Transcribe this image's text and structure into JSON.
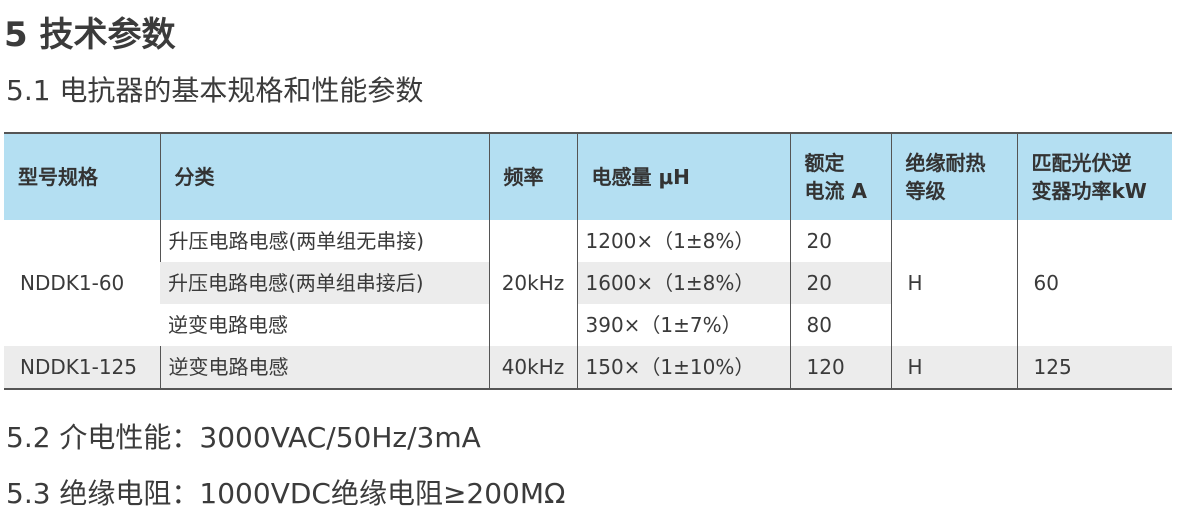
{
  "heading": "5 技术参数",
  "subheading": "5.1 电抗器的基本规格和性能参数",
  "table": {
    "headers": {
      "model": "型号规格",
      "category": "分类",
      "frequency": "频率",
      "inductance": "电感量 μH",
      "current_line1": "额定",
      "current_line2": "电流 A",
      "insulation_line1": "绝缘耐热",
      "insulation_line2": "等级",
      "power_line1": "匹配光伏逆",
      "power_line2": "变器功率kW"
    },
    "group1": {
      "model": "NDDK1-60",
      "frequency": "20kHz",
      "insulation": "H",
      "power": "60",
      "rows": [
        {
          "category": "升压电路电感(两单组无串接)",
          "inductance": "1200×（1±8%）",
          "current": "20"
        },
        {
          "category": "升压电路电感(两单组串接后)",
          "inductance": "1600×（1±8%）",
          "current": "20"
        },
        {
          "category": "逆变电路电感",
          "inductance": "390×（1±7%）",
          "current": "80"
        }
      ]
    },
    "group2": {
      "model": "NDDK1-125",
      "category": "逆变电路电感",
      "frequency": "40kHz",
      "inductance": "150×（1±10%）",
      "current": "120",
      "insulation": "H",
      "power": "125"
    }
  },
  "specs": {
    "dielectric": "5.2 介电性能：3000VAC/50Hz/3mA",
    "insulation_resistance": "5.3 绝缘电阻：1000VDC绝缘电阻≥200MΩ"
  }
}
